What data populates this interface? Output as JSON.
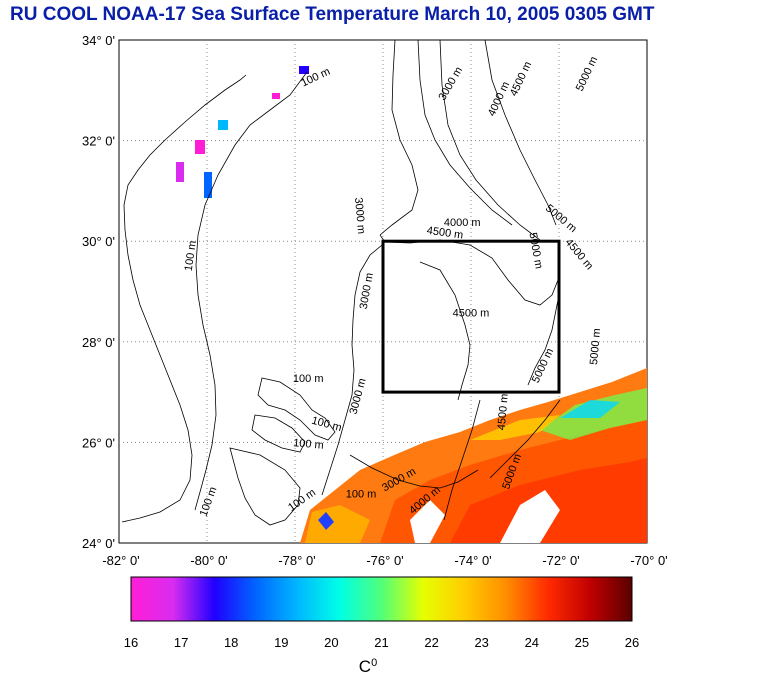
{
  "title": "RU COOL  NOAA-17 Sea Surface Temperature March 10, 2005 0305 GMT",
  "map": {
    "lat_labels": [
      "34° 0'",
      "32° 0'",
      "30° 0'",
      "28° 0'",
      "26° 0'",
      "24° 0'"
    ],
    "lon_labels": [
      "-82° 0'",
      "-80° 0'",
      "-78° 0'",
      "-76° 0'",
      "-74° 0'",
      "-72° 0'",
      "-70° 0'"
    ],
    "lon_range": [
      -82,
      -70
    ],
    "lat_range": [
      24,
      34
    ],
    "grid": "dotted",
    "study_box": {
      "lon": [
        -76,
        -72
      ],
      "lat": [
        27,
        30
      ]
    },
    "contour_labels": [
      {
        "text": "100 m",
        "lon": -77.5,
        "lat": 33.2,
        "rot": -25
      },
      {
        "text": "3000 m",
        "lon": -74.4,
        "lat": 33.1,
        "rot": -60
      },
      {
        "text": "4000 m",
        "lon": -73.3,
        "lat": 32.8,
        "rot": -65
      },
      {
        "text": "4500 m",
        "lon": -72.8,
        "lat": 33.2,
        "rot": -65
      },
      {
        "text": "5000 m",
        "lon": -71.3,
        "lat": 33.3,
        "rot": -65
      },
      {
        "text": "100 m",
        "lon": -80.3,
        "lat": 29.7,
        "rot": -82
      },
      {
        "text": "3000 m",
        "lon": -76.6,
        "lat": 30.5,
        "rot": 85
      },
      {
        "text": "4000 m",
        "lon": -74.2,
        "lat": 30.3,
        "rot": 0
      },
      {
        "text": "4500 m",
        "lon": -74.6,
        "lat": 30.1,
        "rot": 8
      },
      {
        "text": "5000 m",
        "lon": -72.0,
        "lat": 30.4,
        "rot": 40
      },
      {
        "text": "4500 m",
        "lon": -71.6,
        "lat": 29.7,
        "rot": 50
      },
      {
        "text": "5000 m",
        "lon": -72.6,
        "lat": 29.8,
        "rot": 80
      },
      {
        "text": "3000 m",
        "lon": -76.3,
        "lat": 29.0,
        "rot": -80
      },
      {
        "text": "4500 m",
        "lon": -74.0,
        "lat": 28.5,
        "rot": 0
      },
      {
        "text": "5000 m",
        "lon": -71.1,
        "lat": 27.9,
        "rot": -85
      },
      {
        "text": "5000 m",
        "lon": -72.3,
        "lat": 27.5,
        "rot": -65
      },
      {
        "text": "100 m",
        "lon": -77.7,
        "lat": 27.2,
        "rot": 0
      },
      {
        "text": "3000 m",
        "lon": -76.5,
        "lat": 26.9,
        "rot": -75
      },
      {
        "text": "100 m",
        "lon": -77.3,
        "lat": 26.3,
        "rot": 15
      },
      {
        "text": "4500 m",
        "lon": -73.2,
        "lat": 26.6,
        "rot": -85
      },
      {
        "text": "100 m",
        "lon": -77.7,
        "lat": 25.9,
        "rot": 5
      },
      {
        "text": "5000 m",
        "lon": -73.0,
        "lat": 25.4,
        "rot": -70
      },
      {
        "text": "100 m",
        "lon": -79.9,
        "lat": 24.8,
        "rot": -70
      },
      {
        "text": "100 m",
        "lon": -77.8,
        "lat": 24.8,
        "rot": -35
      },
      {
        "text": "100 m",
        "lon": -76.5,
        "lat": 24.9,
        "rot": 0
      },
      {
        "text": "3000 m",
        "lon": -75.6,
        "lat": 25.2,
        "rot": -30
      },
      {
        "text": "4000 m",
        "lon": -75.0,
        "lat": 24.8,
        "rot": -40
      }
    ]
  },
  "colorbar": {
    "min": 16,
    "max": 26,
    "tick_labels": [
      "16",
      "17",
      "18",
      "19",
      "20",
      "21",
      "22",
      "23",
      "24",
      "25",
      "26"
    ],
    "unit_label": "C",
    "unit_superscript": "0",
    "stops": [
      "#ff1ed6",
      "#d92cf0",
      "#2000ff",
      "#0066ff",
      "#00b8ff",
      "#00ffe6",
      "#50ff7a",
      "#e6ff00",
      "#ffcc00",
      "#ff8c00",
      "#ff2a00",
      "#c00000",
      "#5a0000"
    ]
  },
  "colors": {
    "title": "#0a1fa8",
    "contours": "#000000",
    "grid": "#8c8c8c"
  }
}
